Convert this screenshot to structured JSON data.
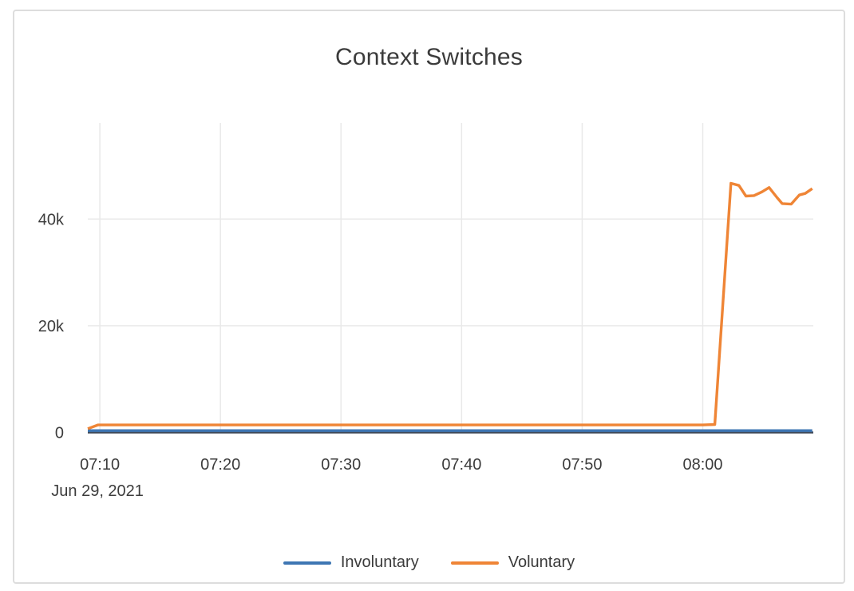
{
  "card": {
    "title": "Context Switches"
  },
  "colors": {
    "involuntary": "#3e76b3",
    "voluntary": "#ef8536",
    "grid": "#e9e9e9",
    "axis_line": "#3d4858",
    "text": "#3c3c3c",
    "card_border": "#dddddd"
  },
  "legend": {
    "items": [
      {
        "label": "Involuntary",
        "color": "#3e76b3"
      },
      {
        "label": "Voluntary",
        "color": "#ef8536"
      }
    ]
  },
  "chart_data": {
    "type": "line",
    "title": "Context Switches",
    "grid": true,
    "legend_position": "bottom",
    "x_axis": {
      "tick_labels": [
        "07:10",
        "07:20",
        "07:30",
        "07:40",
        "07:50",
        "08:00"
      ],
      "date_label": "Jun 29, 2021",
      "range": [
        "07:09:00",
        "08:09:10"
      ]
    },
    "y_axis": {
      "ticks": [
        0,
        20000,
        40000
      ],
      "tick_labels": [
        "0",
        "20k",
        "40k"
      ],
      "range": [
        0,
        58000
      ]
    },
    "series": [
      {
        "name": "Involuntary",
        "color": "#3e76b3",
        "points": [
          [
            "07:09:00",
            350
          ],
          [
            "08:09:05",
            350
          ]
        ]
      },
      {
        "name": "Voluntary",
        "color": "#ef8536",
        "points": [
          [
            "07:09:00",
            700
          ],
          [
            "07:09:50",
            1400
          ],
          [
            "07:20:00",
            1400
          ],
          [
            "07:30:00",
            1400
          ],
          [
            "07:40:00",
            1400
          ],
          [
            "07:50:00",
            1400
          ],
          [
            "08:00:00",
            1400
          ],
          [
            "08:01:00",
            1500
          ],
          [
            "08:02:20",
            46700
          ],
          [
            "08:03:00",
            46300
          ],
          [
            "08:03:35",
            44300
          ],
          [
            "08:04:15",
            44400
          ],
          [
            "08:04:55",
            45100
          ],
          [
            "08:05:30",
            45900
          ],
          [
            "08:06:10",
            44000
          ],
          [
            "08:06:35",
            42900
          ],
          [
            "08:07:20",
            42800
          ],
          [
            "08:08:00",
            44500
          ],
          [
            "08:08:30",
            44800
          ],
          [
            "08:09:05",
            45700
          ]
        ]
      }
    ]
  }
}
